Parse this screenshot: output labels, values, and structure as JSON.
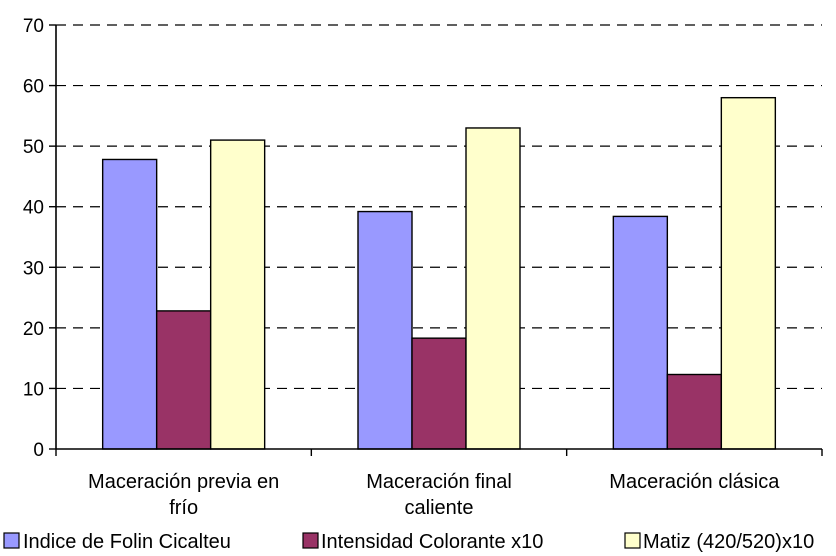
{
  "chart_data": {
    "type": "bar",
    "categories": [
      [
        "Maceración previa en",
        "frío"
      ],
      [
        "Maceración final",
        "caliente"
      ],
      [
        "Maceración clásica"
      ]
    ],
    "series": [
      {
        "name": "Indice de Folin Cicalteu",
        "values": [
          47.8,
          39.2,
          38.4
        ],
        "color": "#9999ff"
      },
      {
        "name": "Intensidad Colorante x10",
        "values": [
          22.8,
          18.3,
          12.3
        ],
        "color": "#993366"
      },
      {
        "name": "Matiz (420/520)x10",
        "values": [
          51.0,
          53.0,
          58.0
        ],
        "color": "#ffffcc"
      }
    ],
    "ylim": [
      0,
      70
    ],
    "yticks": [
      0,
      10,
      20,
      30,
      40,
      50,
      60,
      70
    ],
    "grid": true,
    "grid_style": "dashed",
    "legend_position": "bottom"
  }
}
